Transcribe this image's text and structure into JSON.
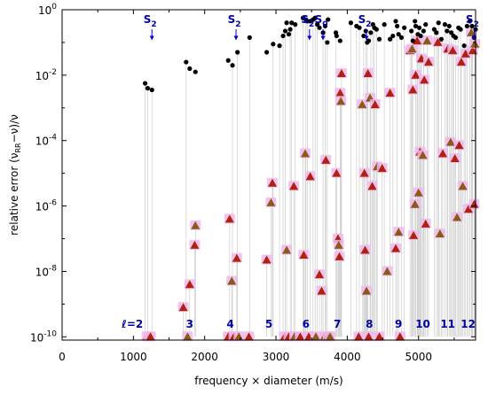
{
  "chart_data": {
    "type": "scatter",
    "title": "",
    "xlabel": "frequency × diameter (m/s)",
    "ylabel": "relative error (νRR−ν)/ν",
    "ylabel_parts": {
      "main": "relative error (ν",
      "sub": "RR",
      "tail": "−ν)/ν"
    },
    "xlim": [
      0,
      5800
    ],
    "ylim_log10": [
      -10.1,
      0
    ],
    "y_scale": "log",
    "x_ticks": [
      {
        "value": 0,
        "label": "0"
      },
      {
        "value": 1000,
        "label": "1000"
      },
      {
        "value": 2000,
        "label": "2000"
      },
      {
        "value": 3000,
        "label": "3000"
      },
      {
        "value": 4000,
        "label": "4000"
      },
      {
        "value": 5000,
        "label": "5000"
      }
    ],
    "y_ticks": [
      {
        "exp": 0,
        "base": "10",
        "sup": "0"
      },
      {
        "exp": -2,
        "base": "10",
        "sup": "-2"
      },
      {
        "exp": -4,
        "base": "10",
        "sup": "-4"
      },
      {
        "exp": -6,
        "base": "10",
        "sup": "-6"
      },
      {
        "exp": -8,
        "base": "10",
        "sup": "-8"
      },
      {
        "exp": -10,
        "base": "10",
        "sup": "-10"
      }
    ],
    "ell_prefix": "ℓ=",
    "ell_groups": [
      {
        "label": "2",
        "x": 1160
      },
      {
        "label": "3",
        "x": 1790
      },
      {
        "label": "4",
        "x": 2360
      },
      {
        "label": "5",
        "x": 2900
      },
      {
        "label": "6",
        "x": 3420
      },
      {
        "label": "7",
        "x": 3860
      },
      {
        "label": "8",
        "x": 4310
      },
      {
        "label": "9",
        "x": 4720
      },
      {
        "label": "10",
        "x": 5060
      },
      {
        "label": "11",
        "x": 5410
      },
      {
        "label": "12",
        "x": 5800
      }
    ],
    "annotations": [
      {
        "label": "S",
        "sub": "2",
        "x": 1260
      },
      {
        "label": "S",
        "sub": "2",
        "x": 2440
      },
      {
        "label": "S",
        "sub": "2",
        "x": 3470
      },
      {
        "label": "S",
        "sub": "0",
        "x": 3660
      },
      {
        "label": "S",
        "sub": "2",
        "x": 4270
      },
      {
        "label": "S",
        "sub": "2",
        "x": 5780
      }
    ],
    "colors": {
      "circle": "#000000",
      "triangle_fill": "#b22010",
      "triangle_fill_alt": "#8b5a1a",
      "triangle_halo": "#f0b8ec",
      "axes": "#000000",
      "guide_lines": "#cccccc",
      "labels": "#0000aa"
    },
    "series": [
      {
        "marker": "circle",
        "points": [
          [
            1165,
            -2.25
          ],
          [
            1200,
            -2.4
          ],
          [
            1260,
            -2.45
          ],
          [
            1740,
            -1.6
          ],
          [
            1790,
            -1.8
          ],
          [
            1870,
            -1.9
          ],
          [
            2330,
            -1.55
          ],
          [
            2390,
            -1.7
          ],
          [
            2460,
            -1.3
          ],
          [
            2630,
            -0.85
          ],
          [
            2870,
            -1.3
          ],
          [
            2960,
            -1.05
          ],
          [
            3050,
            -1.1
          ],
          [
            3100,
            -0.8
          ],
          [
            3130,
            -0.65
          ],
          [
            3150,
            -0.4
          ],
          [
            3180,
            -0.75
          ],
          [
            3200,
            -0.6
          ],
          [
            3220,
            -0.4
          ],
          [
            3270,
            -0.45
          ],
          [
            3380,
            -0.25
          ],
          [
            3420,
            -0.3
          ],
          [
            3440,
            -0.35
          ],
          [
            3480,
            -0.35
          ],
          [
            3520,
            -0.3
          ],
          [
            3550,
            -0.25
          ],
          [
            3580,
            -0.45
          ],
          [
            3610,
            -0.55
          ],
          [
            3660,
            -0.7
          ],
          [
            3690,
            -0.5
          ],
          [
            3720,
            -1.0
          ],
          [
            3730,
            -0.3
          ],
          [
            3840,
            -0.7
          ],
          [
            3850,
            -0.8
          ],
          [
            3900,
            -0.95
          ],
          [
            4050,
            -0.4
          ],
          [
            4130,
            -0.5
          ],
          [
            4170,
            -0.55
          ],
          [
            4230,
            -0.8
          ],
          [
            4260,
            -0.65
          ],
          [
            4280,
            -1.0
          ],
          [
            4300,
            -0.95
          ],
          [
            4330,
            -0.7
          ],
          [
            4360,
            -0.45
          ],
          [
            4380,
            -0.55
          ],
          [
            4410,
            -0.6
          ],
          [
            4450,
            -0.9
          ],
          [
            4520,
            -0.45
          ],
          [
            4600,
            -0.9
          ],
          [
            4640,
            -0.8
          ],
          [
            4680,
            -0.35
          ],
          [
            4700,
            -0.5
          ],
          [
            4720,
            -0.75
          ],
          [
            4760,
            -0.85
          ],
          [
            4800,
            -0.55
          ],
          [
            4900,
            -0.65
          ],
          [
            4920,
            -0.95
          ],
          [
            4950,
            -0.35
          ],
          [
            4960,
            -0.5
          ],
          [
            4990,
            -0.75
          ],
          [
            5010,
            -0.55
          ],
          [
            5030,
            -0.8
          ],
          [
            5070,
            -0.65
          ],
          [
            5100,
            -0.45
          ],
          [
            5220,
            -0.6
          ],
          [
            5250,
            -0.7
          ],
          [
            5280,
            -0.4
          ],
          [
            5320,
            -0.9
          ],
          [
            5370,
            -0.45
          ],
          [
            5400,
            -0.65
          ],
          [
            5430,
            -0.5
          ],
          [
            5460,
            -0.7
          ],
          [
            5490,
            -0.8
          ],
          [
            5520,
            -0.85
          ],
          [
            5560,
            -0.55
          ],
          [
            5590,
            -0.6
          ],
          [
            5640,
            -1.1
          ],
          [
            5680,
            -0.5
          ],
          [
            5720,
            -0.35
          ],
          [
            5750,
            -0.5
          ],
          [
            5780,
            -0.85
          ],
          [
            5800,
            -0.6
          ]
        ]
      },
      {
        "marker": "triangle",
        "points": [
          [
            1190,
            -10
          ],
          [
            1220,
            -10
          ],
          [
            1240,
            -10
          ],
          [
            1700,
            -9.1
          ],
          [
            1760,
            -10
          ],
          [
            1790,
            -8.4
          ],
          [
            1860,
            -7.2
          ],
          [
            1870,
            -6.6
          ],
          [
            2330,
            -10
          ],
          [
            2350,
            -6.4
          ],
          [
            2380,
            -8.3
          ],
          [
            2410,
            -10
          ],
          [
            2450,
            -7.6
          ],
          [
            2480,
            -10
          ],
          [
            2620,
            -10
          ],
          [
            2870,
            -7.65
          ],
          [
            2930,
            -5.9
          ],
          [
            2950,
            -5.3
          ],
          [
            3120,
            -10
          ],
          [
            3150,
            -7.35
          ],
          [
            3180,
            -10
          ],
          [
            3250,
            -5.4
          ],
          [
            3260,
            -10
          ],
          [
            3340,
            -10
          ],
          [
            3390,
            -7.5
          ],
          [
            3410,
            -4.4
          ],
          [
            3460,
            -10
          ],
          [
            3480,
            -5.1
          ],
          [
            3560,
            -10
          ],
          [
            3610,
            -8.1
          ],
          [
            3640,
            -8.6
          ],
          [
            3680,
            -10
          ],
          [
            3700,
            -4.6
          ],
          [
            3730,
            -10
          ],
          [
            3760,
            -10
          ],
          [
            3850,
            -5.0
          ],
          [
            3870,
            -7.0
          ],
          [
            3880,
            -7.2
          ],
          [
            3890,
            -7.55
          ],
          [
            3900,
            -2.55
          ],
          [
            3910,
            -2.8
          ],
          [
            3920,
            -1.95
          ],
          [
            4160,
            -10
          ],
          [
            4210,
            -2.9
          ],
          [
            4240,
            -5.0
          ],
          [
            4250,
            -7.35
          ],
          [
            4270,
            -8.6
          ],
          [
            4290,
            -1.95
          ],
          [
            4300,
            -10
          ],
          [
            4320,
            -2.7
          ],
          [
            4350,
            -5.4
          ],
          [
            4390,
            -2.9
          ],
          [
            4420,
            -4.8
          ],
          [
            4450,
            -10
          ],
          [
            4490,
            -4.85
          ],
          [
            4560,
            -8.0
          ],
          [
            4600,
            -2.55
          ],
          [
            4680,
            -7.3
          ],
          [
            4720,
            -6.8
          ],
          [
            4740,
            -10
          ],
          [
            4880,
            -1.25
          ],
          [
            4910,
            -1.2
          ],
          [
            4920,
            -2.45
          ],
          [
            4930,
            -6.9
          ],
          [
            4950,
            -5.95
          ],
          [
            4960,
            -2.0
          ],
          [
            4980,
            -0.95
          ],
          [
            5000,
            -5.6
          ],
          [
            5020,
            -4.35
          ],
          [
            5040,
            -1.5
          ],
          [
            5060,
            -4.45
          ],
          [
            5080,
            -2.15
          ],
          [
            5100,
            -6.55
          ],
          [
            5120,
            -0.95
          ],
          [
            5140,
            -1.6
          ],
          [
            5270,
            -1.0
          ],
          [
            5300,
            -6.85
          ],
          [
            5340,
            -4.4
          ],
          [
            5410,
            -1.2
          ],
          [
            5450,
            -4.05
          ],
          [
            5480,
            -1.25
          ],
          [
            5510,
            -4.55
          ],
          [
            5540,
            -6.35
          ],
          [
            5570,
            -4.15
          ],
          [
            5600,
            -1.6
          ],
          [
            5620,
            -5.4
          ],
          [
            5660,
            -1.35
          ],
          [
            5700,
            -6.1
          ],
          [
            5740,
            -0.7
          ],
          [
            5760,
            -1.25
          ],
          [
            5780,
            -5.95
          ],
          [
            5790,
            -1.05
          ]
        ]
      }
    ]
  }
}
